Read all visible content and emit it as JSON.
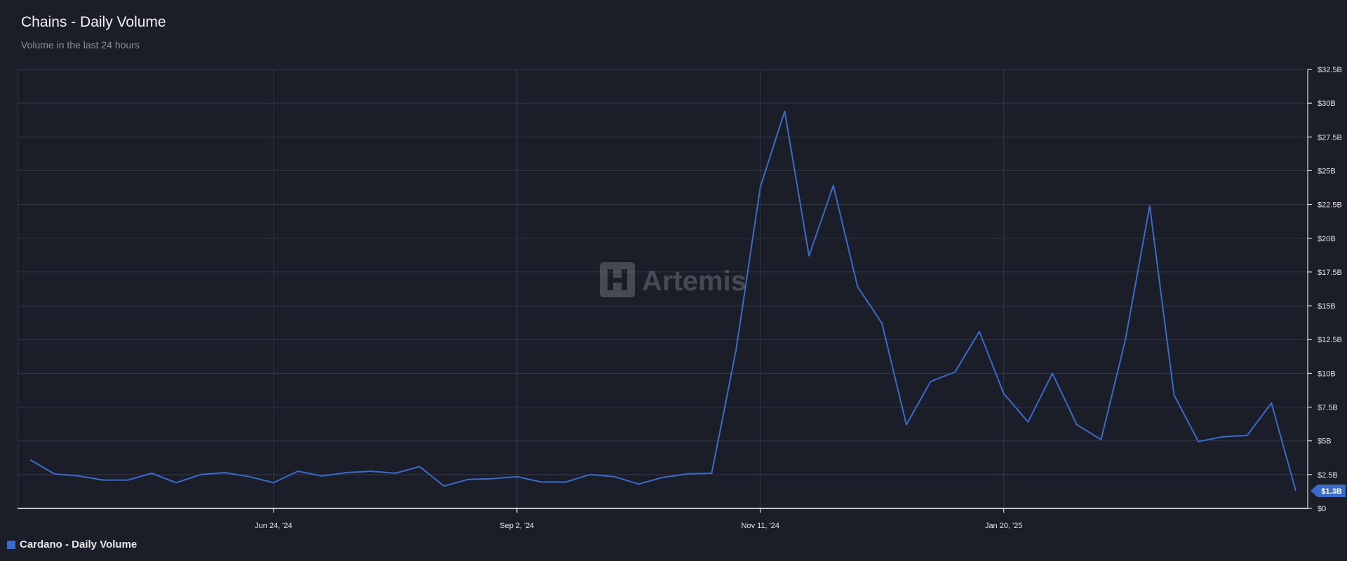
{
  "header": {
    "title": "Chains - Daily Volume",
    "subtitle": "Volume in the last 24 hours"
  },
  "watermark": "Artemis",
  "legend": {
    "label": "Cardano - Daily Volume"
  },
  "colors": {
    "series": "#3a6bc9",
    "background": "#1b1d29",
    "grid": "#34374a"
  },
  "chart_data": {
    "type": "line",
    "title": "Chains - Daily Volume",
    "subtitle": "Volume in the last 24 hours",
    "x_ticks": [
      "Jun 24, '24",
      "Sep 2, '24",
      "Nov 11, '24",
      "Jan 20, '25"
    ],
    "x_tick_dates": [
      "2024-06-24",
      "2024-09-02",
      "2024-11-11",
      "2025-01-20"
    ],
    "y_ticks": [
      "$0",
      "$2.5B",
      "$5B",
      "$7.5B",
      "$10B",
      "$12.5B",
      "$15B",
      "$17.5B",
      "$20B",
      "$22.5B",
      "$25B",
      "$27.5B",
      "$30B",
      "$32.5B"
    ],
    "ylim": [
      0,
      32.5
    ],
    "y_unit": "USD billions",
    "y_axis_position": "right",
    "grid": true,
    "legend_position": "bottom-left",
    "last_value_label": "$1.3B",
    "series": [
      {
        "name": "Cardano - Daily Volume",
        "x": [
          "2024-04-15",
          "2024-04-22",
          "2024-04-29",
          "2024-05-06",
          "2024-05-13",
          "2024-05-20",
          "2024-05-27",
          "2024-06-03",
          "2024-06-10",
          "2024-06-17",
          "2024-06-24",
          "2024-07-01",
          "2024-07-08",
          "2024-07-15",
          "2024-07-22",
          "2024-07-29",
          "2024-08-05",
          "2024-08-12",
          "2024-08-19",
          "2024-08-26",
          "2024-09-02",
          "2024-09-09",
          "2024-09-16",
          "2024-09-23",
          "2024-09-30",
          "2024-10-07",
          "2024-10-14",
          "2024-10-21",
          "2024-10-28",
          "2024-11-04",
          "2024-11-11",
          "2024-11-18",
          "2024-11-25",
          "2024-12-02",
          "2024-12-09",
          "2024-12-16",
          "2024-12-23",
          "2024-12-30",
          "2025-01-06",
          "2025-01-13",
          "2025-01-20",
          "2025-01-27",
          "2025-02-03",
          "2025-02-10",
          "2025-02-17",
          "2025-02-24",
          "2025-03-03",
          "2025-03-10",
          "2025-03-17",
          "2025-03-24",
          "2025-03-31",
          "2025-04-07",
          "2025-04-14"
        ],
        "values": [
          3.6,
          2.55,
          2.4,
          2.1,
          2.1,
          2.6,
          1.9,
          2.5,
          2.65,
          2.35,
          1.9,
          2.75,
          2.4,
          2.65,
          2.75,
          2.6,
          3.1,
          1.65,
          2.15,
          2.2,
          2.35,
          1.95,
          1.95,
          2.5,
          2.35,
          1.8,
          2.3,
          2.55,
          2.6,
          11.7,
          23.8,
          29.4,
          18.7,
          23.9,
          16.4,
          13.7,
          6.2,
          9.4,
          10.1,
          13.1,
          8.5,
          6.4,
          10.0,
          6.2,
          5.1,
          12.5,
          22.4,
          8.4,
          4.95,
          5.3,
          5.4,
          7.8,
          1.3
        ]
      }
    ]
  }
}
